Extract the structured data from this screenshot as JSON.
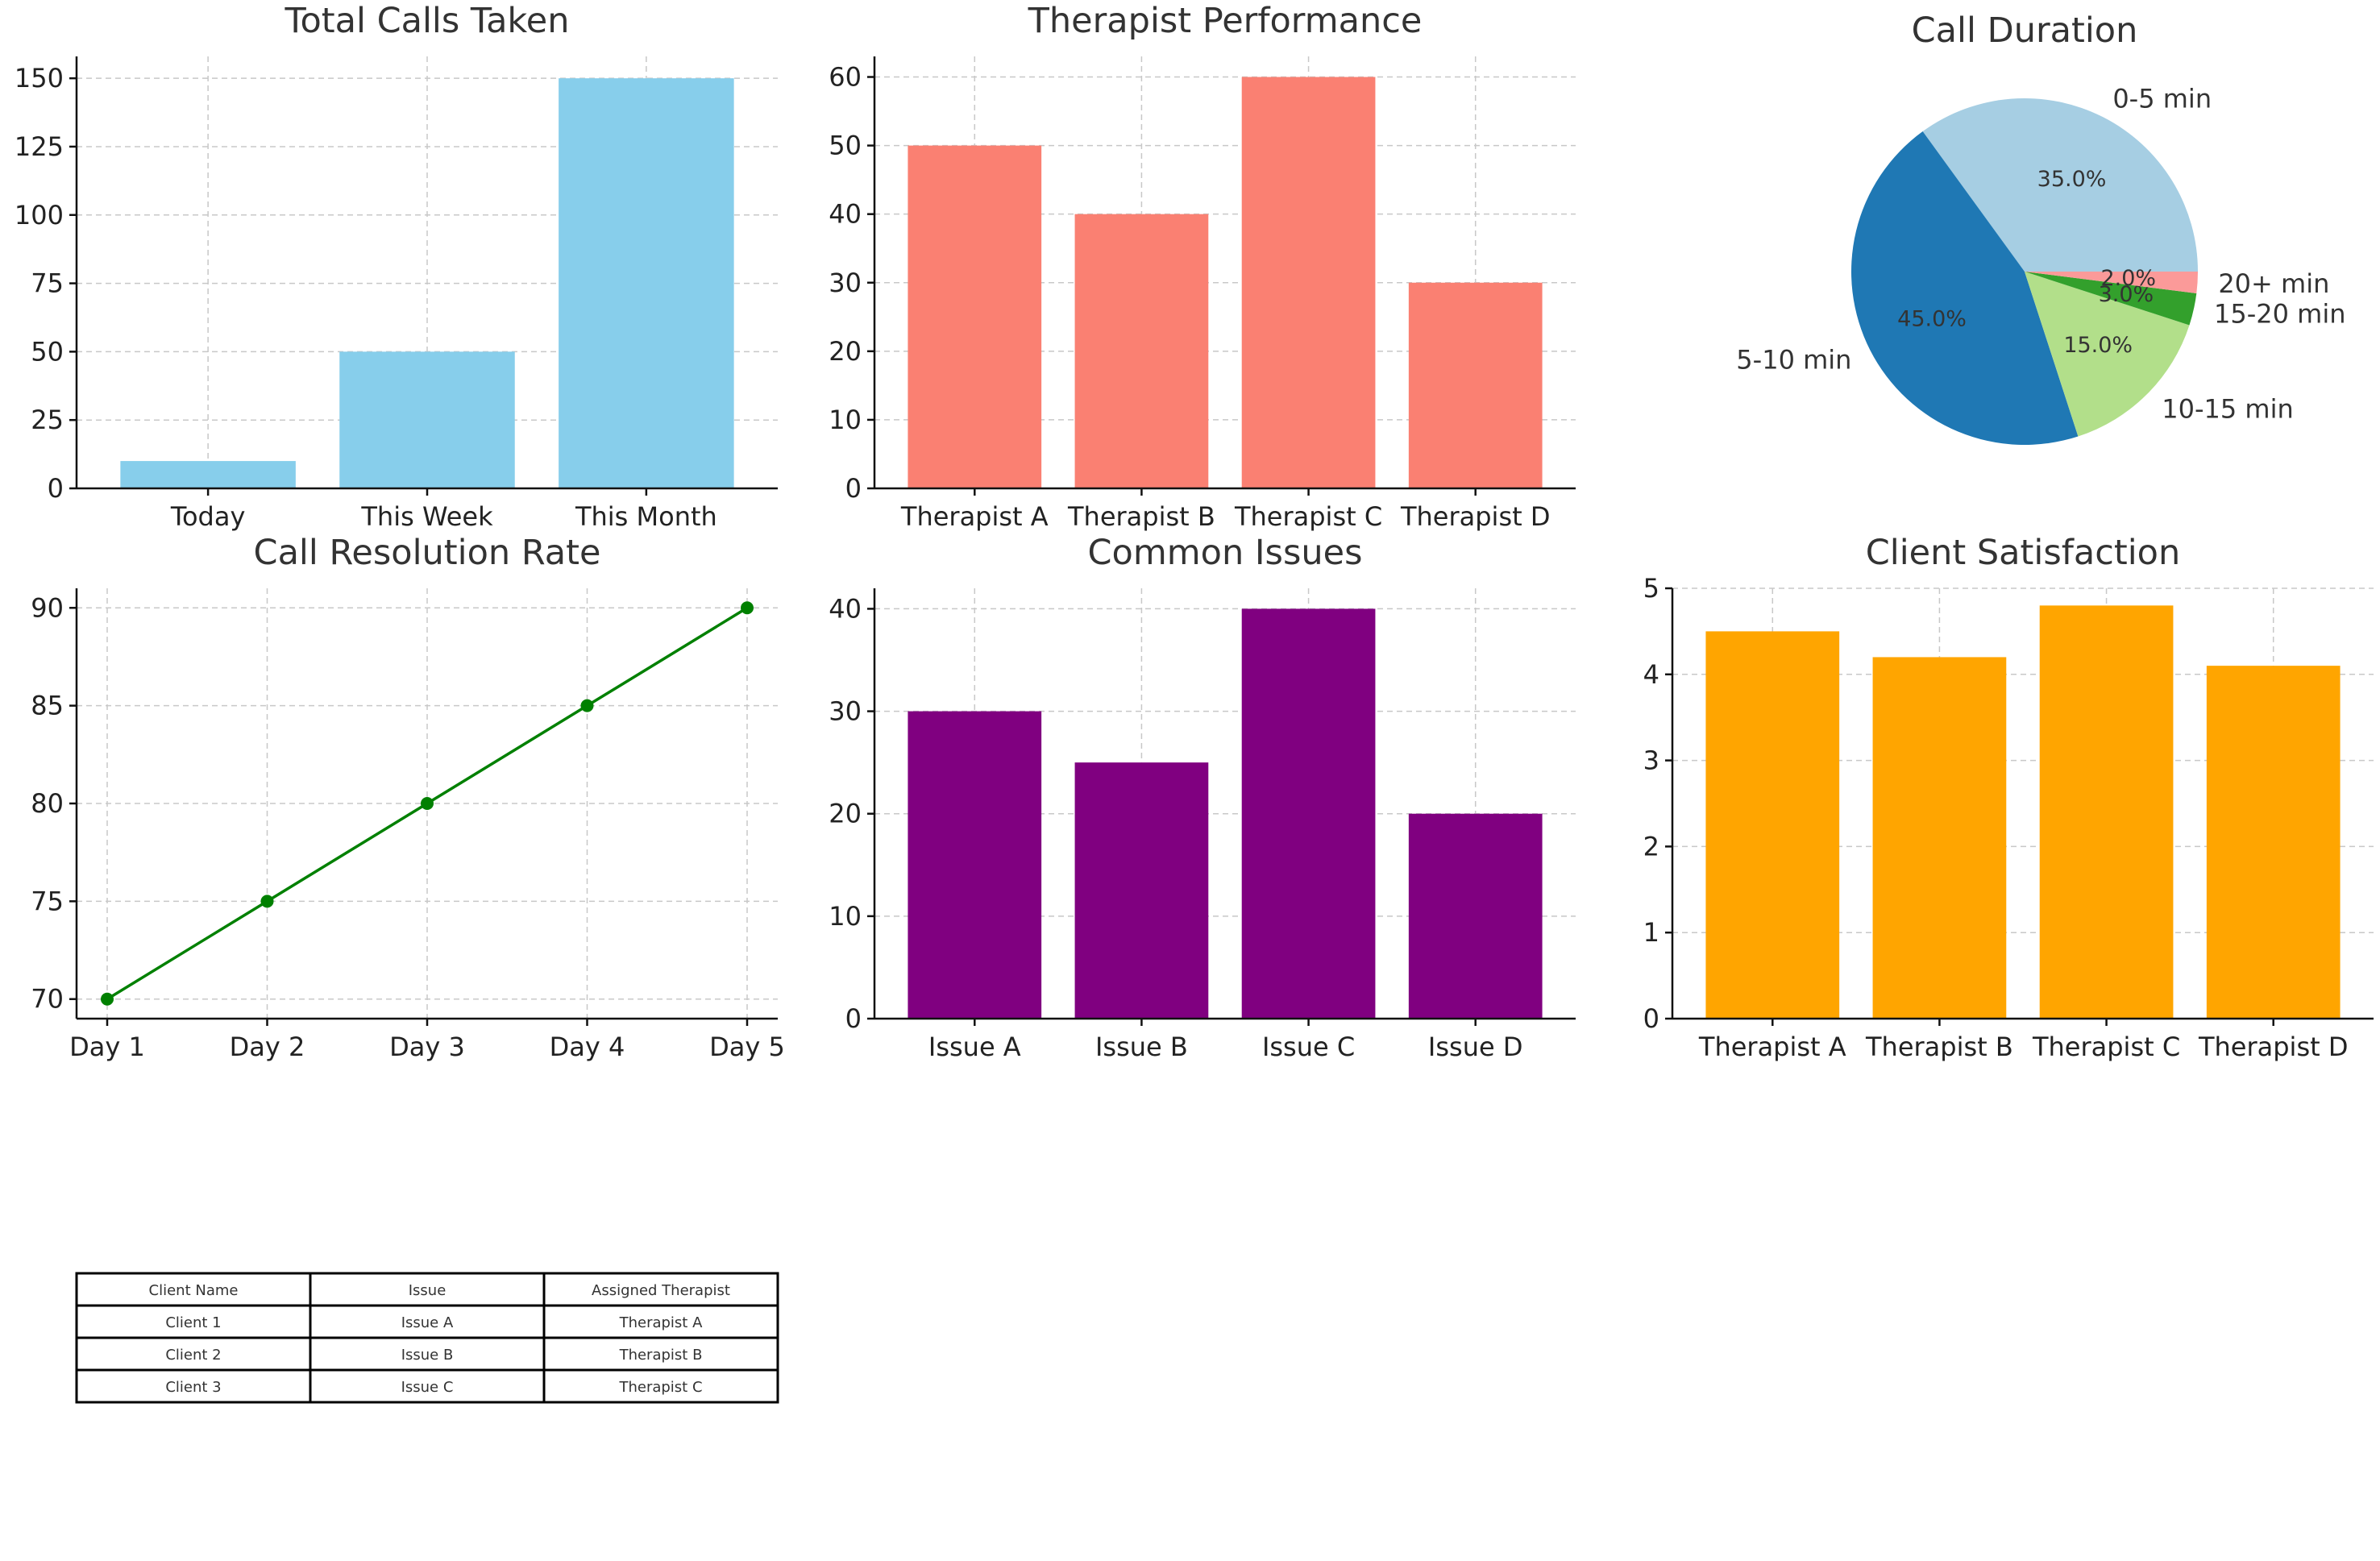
{
  "chart_data": [
    {
      "id": "total-calls",
      "type": "bar",
      "title": "Total Calls Taken",
      "categories": [
        "Today",
        "This Week",
        "This Month"
      ],
      "values": [
        10,
        50,
        150
      ],
      "ylim": [
        0,
        158
      ],
      "yticks": [
        0,
        25,
        50,
        75,
        100,
        125,
        150
      ],
      "color": "#87CEEB",
      "grid": true
    },
    {
      "id": "therapist-performance",
      "type": "bar",
      "title": "Therapist Performance",
      "categories": [
        "Therapist A",
        "Therapist B",
        "Therapist C",
        "Therapist D"
      ],
      "values": [
        50,
        40,
        60,
        30
      ],
      "ylim": [
        0,
        63
      ],
      "yticks": [
        0,
        10,
        20,
        30,
        40,
        50,
        60
      ],
      "color": "#FA8072",
      "grid": true
    },
    {
      "id": "call-duration",
      "type": "pie",
      "title": "Call Duration",
      "labels": [
        "0-5 min",
        "5-10 min",
        "10-15 min",
        "15-20 min",
        "20+ min"
      ],
      "values": [
        35.0,
        45.0,
        15.0,
        3.0,
        2.0
      ],
      "pct_labels": [
        "35.0%",
        "45.0%",
        "15.0%",
        "3.0%",
        "2.0%"
      ],
      "colors": [
        "#A6CEE3",
        "#1F78B4",
        "#B2DF8A",
        "#33A02C",
        "#FB9A99"
      ]
    },
    {
      "id": "call-resolution",
      "type": "line",
      "title": "Call Resolution Rate",
      "x": [
        "Day 1",
        "Day 2",
        "Day 3",
        "Day 4",
        "Day 5"
      ],
      "values": [
        70,
        75,
        80,
        85,
        90
      ],
      "ylim": [
        69,
        91
      ],
      "yticks": [
        70,
        75,
        80,
        85,
        90
      ],
      "color": "#008000",
      "grid": true
    },
    {
      "id": "common-issues",
      "type": "bar",
      "title": "Common Issues",
      "categories": [
        "Issue A",
        "Issue B",
        "Issue C",
        "Issue D"
      ],
      "values": [
        30,
        25,
        40,
        20
      ],
      "ylim": [
        0,
        42
      ],
      "yticks": [
        0,
        10,
        20,
        30,
        40
      ],
      "color": "#800080",
      "grid": true
    },
    {
      "id": "client-satisfaction",
      "type": "bar",
      "title": "Client Satisfaction",
      "categories": [
        "Therapist A",
        "Therapist B",
        "Therapist C",
        "Therapist D"
      ],
      "values": [
        4.5,
        4.2,
        4.8,
        4.1
      ],
      "ylim": [
        0,
        5
      ],
      "yticks": [
        0,
        1,
        2,
        3,
        4,
        5
      ],
      "color": "#FFA500",
      "grid": true
    },
    {
      "id": "client-table",
      "type": "table",
      "columns": [
        "Client Name",
        "Issue",
        "Assigned Therapist"
      ],
      "rows": [
        [
          "Client 1",
          "Issue A",
          "Therapist A"
        ],
        [
          "Client 2",
          "Issue B",
          "Therapist B"
        ],
        [
          "Client 3",
          "Issue C",
          "Therapist C"
        ]
      ]
    }
  ]
}
